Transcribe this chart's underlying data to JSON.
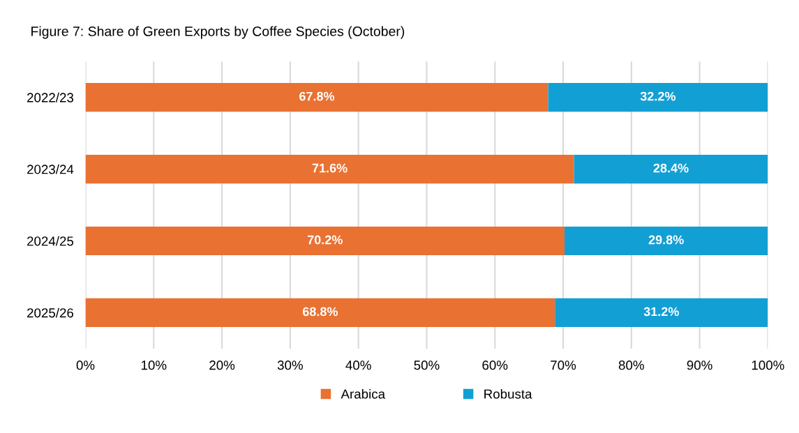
{
  "chart_data": {
    "type": "bar",
    "title": "Figure 7: Share of Green Exports by Coffee Species (October)",
    "orientation": "horizontal",
    "stacked": true,
    "categories": [
      "2022/23",
      "2023/24",
      "2024/25",
      "2025/26"
    ],
    "series": [
      {
        "name": "Arabica",
        "color": "#e97132",
        "values": [
          67.8,
          71.6,
          70.2,
          68.8
        ],
        "value_labels": [
          "67.8%",
          "71.6%",
          "70.2%",
          "68.8%"
        ]
      },
      {
        "name": "Robusta",
        "color": "#129fd4",
        "values": [
          32.2,
          28.4,
          29.8,
          31.2
        ],
        "value_labels": [
          "32.2%",
          "28.4%",
          "29.8%",
          "31.2%"
        ]
      }
    ],
    "xlim": [
      0,
      100
    ],
    "xticks": [
      {
        "value": 0,
        "label": "0%"
      },
      {
        "value": 10,
        "label": "10%"
      },
      {
        "value": 20,
        "label": "20%"
      },
      {
        "value": 30,
        "label": "30%"
      },
      {
        "value": 40,
        "label": "40%"
      },
      {
        "value": 50,
        "label": "50%"
      },
      {
        "value": 60,
        "label": "60%"
      },
      {
        "value": 70,
        "label": "70%"
      },
      {
        "value": 80,
        "label": "80%"
      },
      {
        "value": 90,
        "label": "90%"
      },
      {
        "value": 100,
        "label": "100%"
      }
    ],
    "grid": "x",
    "legend": "bottom"
  }
}
